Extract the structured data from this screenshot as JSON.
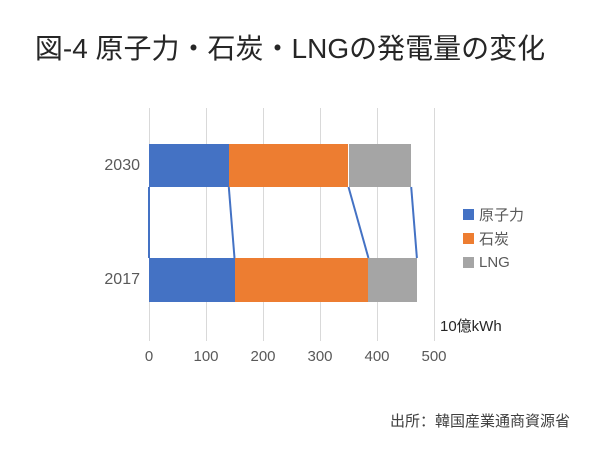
{
  "title": "図-4 原子力・石炭・LNGの発電量の変化",
  "source": "出所：韓国産業通商資源省",
  "axis_unit": "10億kWh",
  "chart_data": {
    "type": "bar",
    "orientation": "horizontal-stacked",
    "title": "図-4 原子力・石炭・LNGの発電量の変化",
    "categories": [
      "2030",
      "2017"
    ],
    "series": [
      {
        "name": "原子力",
        "color": "#4472C4",
        "values": [
          140,
          150
        ]
      },
      {
        "name": "石炭",
        "color": "#ED7D31",
        "values": [
          210,
          235
        ]
      },
      {
        "name": "LNG",
        "color": "#A5A5A5",
        "values": [
          110,
          85
        ]
      }
    ],
    "xlabel": "10億kWh",
    "xticks": [
      0,
      100,
      200,
      300,
      400,
      500
    ],
    "xlim": [
      0,
      500
    ],
    "grid": true,
    "legend_position": "right",
    "series_lines_color": "#4472C4"
  }
}
